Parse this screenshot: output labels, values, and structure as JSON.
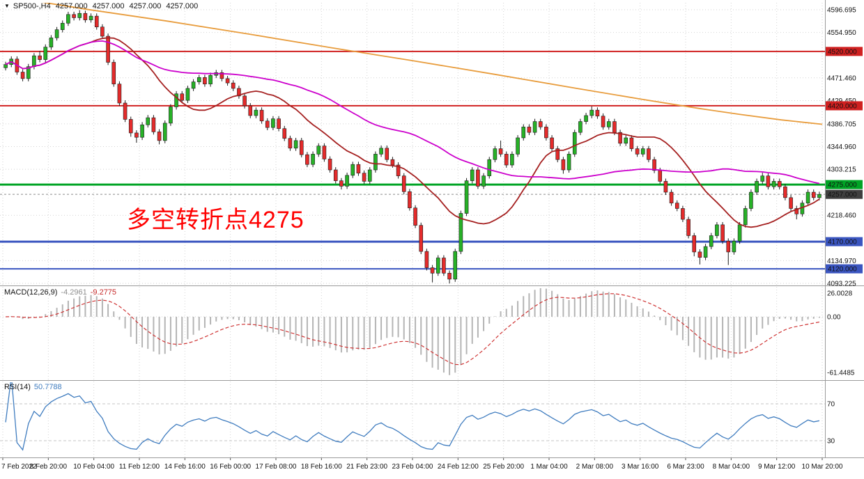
{
  "icons": {
    "dropdown": "▼"
  },
  "header": {
    "symbol": "SP500-,H4",
    "open": "4257.000",
    "high": "4257.000",
    "low": "4257.000",
    "close": "4257.000"
  },
  "annotation": {
    "text": "多空转折点4275",
    "color": "#ff0000"
  },
  "chart_data": {
    "type": "candlestick",
    "symbol": "SP500-",
    "timeframe": "H4",
    "style": {
      "grid": "#d2d2d2",
      "sep": "#9a9a9a",
      "wick": "#1c1c1c",
      "up": "#27b127",
      "down": "#e42b2b",
      "text": "#111111"
    },
    "price_axis": {
      "max": 4596.695,
      "min": 4093.225,
      "labels": [
        {
          "text": "4596.695",
          "value": 4596.695
        },
        {
          "text": "4554.950",
          "value": 4554.95
        },
        {
          "text": "4471.460",
          "value": 4471.46
        },
        {
          "text": "4429.450",
          "value": 4429.45
        },
        {
          "text": "4386.705",
          "value": 4386.705
        },
        {
          "text": "4344.960",
          "value": 4344.96
        },
        {
          "text": "4303.215",
          "value": 4303.215
        },
        {
          "text": "4218.460",
          "value": 4218.46
        },
        {
          "text": "4134.970",
          "value": 4134.97
        },
        {
          "text": "4093.225",
          "value": 4093.225
        }
      ]
    },
    "hlines": [
      {
        "value": 4520,
        "color": "#d02020",
        "width": 2
      },
      {
        "value": 4420,
        "color": "#d02020",
        "width": 2
      },
      {
        "value": 4275,
        "color": "#00a425",
        "width": 3
      },
      {
        "value": 4170,
        "color": "#3a55c0",
        "width": 3
      },
      {
        "value": 4120,
        "color": "#3a55c0",
        "width": 2
      },
      {
        "value": 4257,
        "color": "#8a8a8a",
        "width": 1,
        "dash": "3 3"
      }
    ],
    "badges": [
      {
        "text": "4520.000",
        "value": 4520,
        "color": "#d02020"
      },
      {
        "text": "4420.000",
        "value": 4420,
        "color": "#d02020"
      },
      {
        "text": "4275.000",
        "value": 4275,
        "color": "#00a425"
      },
      {
        "text": "4257.000",
        "value": 4257,
        "color": "#3f3f3f"
      },
      {
        "text": "4170.000",
        "value": 4170,
        "color": "#3a55c0"
      },
      {
        "text": "4120.000",
        "value": 4120,
        "color": "#3a55c0"
      }
    ],
    "moving_averages": [
      {
        "name": "ma-fast-red",
        "color": "#a52020",
        "sma": 16
      },
      {
        "name": "ma-mid-magenta",
        "color": "#cc00cc",
        "sma": 48
      },
      {
        "name": "ma-slow-orange",
        "color": "#e89c3c",
        "points": [
          [
            0,
            4622
          ],
          [
            0.105,
            4597
          ],
          [
            0.2,
            4576
          ],
          [
            0.3,
            4552
          ],
          [
            0.4,
            4527
          ],
          [
            0.5,
            4503
          ],
          [
            0.6,
            4478
          ],
          [
            0.7,
            4452
          ],
          [
            0.78,
            4432
          ],
          [
            0.85,
            4415
          ],
          [
            0.9,
            4404
          ],
          [
            0.95,
            4394
          ],
          [
            1,
            4386
          ]
        ]
      }
    ],
    "candles": [
      [
        4490,
        4501,
        4485,
        4496
      ],
      [
        4496,
        4511,
        4491,
        4506
      ],
      [
        4506,
        4511,
        4477,
        4482
      ],
      [
        4482,
        4487,
        4465,
        4470
      ],
      [
        4470,
        4497,
        4465,
        4492
      ],
      [
        4492,
        4517,
        4487,
        4512
      ],
      [
        4512,
        4521,
        4500,
        4505
      ],
      [
        4505,
        4533,
        4500,
        4528
      ],
      [
        4528,
        4550,
        4523,
        4545
      ],
      [
        4545,
        4565,
        4540,
        4560
      ],
      [
        4560,
        4577,
        4555,
        4572
      ],
      [
        4572,
        4593,
        4567,
        4588
      ],
      [
        4588,
        4593,
        4577,
        4582
      ],
      [
        4582,
        4596,
        4577,
        4590
      ],
      [
        4590,
        4595,
        4573,
        4578
      ],
      [
        4578,
        4590,
        4573,
        4585
      ],
      [
        4585,
        4590,
        4560,
        4565
      ],
      [
        4565,
        4570,
        4543,
        4548
      ],
      [
        4548,
        4553,
        4495,
        4500
      ],
      [
        4500,
        4505,
        4455,
        4460
      ],
      [
        4460,
        4465,
        4420,
        4425
      ],
      [
        4425,
        4430,
        4390,
        4395
      ],
      [
        4395,
        4400,
        4363,
        4370
      ],
      [
        4370,
        4375,
        4352,
        4362
      ],
      [
        4362,
        4390,
        4357,
        4385
      ],
      [
        4385,
        4403,
        4380,
        4398
      ],
      [
        4398,
        4403,
        4367,
        4372
      ],
      [
        4372,
        4377,
        4349,
        4356
      ],
      [
        4356,
        4393,
        4351,
        4388
      ],
      [
        4388,
        4423,
        4383,
        4418
      ],
      [
        4418,
        4447,
        4413,
        4442
      ],
      [
        4442,
        4447,
        4425,
        4430
      ],
      [
        4430,
        4457,
        4425,
        4452
      ],
      [
        4452,
        4469,
        4447,
        4464
      ],
      [
        4464,
        4477,
        4459,
        4472
      ],
      [
        4472,
        4477,
        4455,
        4460
      ],
      [
        4460,
        4481,
        4455,
        4476
      ],
      [
        4476,
        4486,
        4471,
        4481
      ],
      [
        4481,
        4486,
        4465,
        4470
      ],
      [
        4470,
        4475,
        4457,
        4462
      ],
      [
        4462,
        4467,
        4447,
        4452
      ],
      [
        4452,
        4457,
        4433,
        4438
      ],
      [
        4438,
        4443,
        4415,
        4420
      ],
      [
        4420,
        4425,
        4397,
        4402
      ],
      [
        4402,
        4417,
        4397,
        4412
      ],
      [
        4412,
        4417,
        4387,
        4392
      ],
      [
        4392,
        4397,
        4375,
        4380
      ],
      [
        4380,
        4401,
        4375,
        4396
      ],
      [
        4396,
        4401,
        4373,
        4378
      ],
      [
        4378,
        4383,
        4355,
        4360
      ],
      [
        4360,
        4365,
        4337,
        4342
      ],
      [
        4342,
        4361,
        4337,
        4356
      ],
      [
        4356,
        4361,
        4325,
        4330
      ],
      [
        4330,
        4335,
        4307,
        4312
      ],
      [
        4312,
        4336,
        4307,
        4331
      ],
      [
        4331,
        4351,
        4326,
        4346
      ],
      [
        4346,
        4351,
        4317,
        4322
      ],
      [
        4322,
        4327,
        4297,
        4302
      ],
      [
        4302,
        4307,
        4277,
        4282
      ],
      [
        4282,
        4287,
        4266,
        4272
      ],
      [
        4272,
        4297,
        4267,
        4292
      ],
      [
        4292,
        4317,
        4287,
        4312
      ],
      [
        4312,
        4317,
        4291,
        4296
      ],
      [
        4296,
        4301,
        4276,
        4281
      ],
      [
        4281,
        4307,
        4276,
        4302
      ],
      [
        4302,
        4336,
        4297,
        4331
      ],
      [
        4331,
        4347,
        4326,
        4342
      ],
      [
        4342,
        4347,
        4316,
        4321
      ],
      [
        4321,
        4326,
        4306,
        4311
      ],
      [
        4311,
        4316,
        4286,
        4291
      ],
      [
        4291,
        4296,
        4257,
        4262
      ],
      [
        4262,
        4267,
        4227,
        4232
      ],
      [
        4232,
        4237,
        4195,
        4200
      ],
      [
        4200,
        4205,
        4147,
        4152
      ],
      [
        4152,
        4157,
        4117,
        4122
      ],
      [
        4122,
        4127,
        4095,
        4112
      ],
      [
        4112,
        4145,
        4107,
        4140
      ],
      [
        4140,
        4145,
        4107,
        4112
      ],
      [
        4112,
        4117,
        4093,
        4101
      ],
      [
        4101,
        4157,
        4096,
        4152
      ],
      [
        4152,
        4227,
        4147,
        4222
      ],
      [
        4222,
        4287,
        4217,
        4282
      ],
      [
        4282,
        4307,
        4277,
        4302
      ],
      [
        4302,
        4307,
        4267,
        4272
      ],
      [
        4272,
        4296,
        4267,
        4291
      ],
      [
        4291,
        4326,
        4286,
        4321
      ],
      [
        4321,
        4346,
        4316,
        4341
      ],
      [
        4341,
        4356,
        4326,
        4331
      ],
      [
        4331,
        4336,
        4306,
        4311
      ],
      [
        4311,
        4336,
        4306,
        4331
      ],
      [
        4331,
        4366,
        4326,
        4361
      ],
      [
        4361,
        4386,
        4356,
        4381
      ],
      [
        4381,
        4386,
        4366,
        4371
      ],
      [
        4371,
        4396,
        4366,
        4391
      ],
      [
        4391,
        4396,
        4376,
        4381
      ],
      [
        4381,
        4386,
        4356,
        4361
      ],
      [
        4361,
        4366,
        4336,
        4341
      ],
      [
        4341,
        4346,
        4316,
        4321
      ],
      [
        4321,
        4326,
        4295,
        4302
      ],
      [
        4302,
        4336,
        4297,
        4331
      ],
      [
        4331,
        4376,
        4326,
        4371
      ],
      [
        4371,
        4396,
        4366,
        4391
      ],
      [
        4391,
        4407,
        4386,
        4402
      ],
      [
        4402,
        4419,
        4397,
        4412
      ],
      [
        4412,
        4417,
        4396,
        4401
      ],
      [
        4401,
        4406,
        4376,
        4381
      ],
      [
        4381,
        4396,
        4376,
        4391
      ],
      [
        4391,
        4396,
        4366,
        4371
      ],
      [
        4371,
        4376,
        4346,
        4351
      ],
      [
        4351,
        4366,
        4346,
        4361
      ],
      [
        4361,
        4366,
        4336,
        4341
      ],
      [
        4341,
        4346,
        4326,
        4331
      ],
      [
        4331,
        4346,
        4326,
        4341
      ],
      [
        4341,
        4346,
        4316,
        4321
      ],
      [
        4321,
        4326,
        4296,
        4301
      ],
      [
        4301,
        4306,
        4276,
        4281
      ],
      [
        4281,
        4286,
        4256,
        4261
      ],
      [
        4261,
        4266,
        4236,
        4241
      ],
      [
        4241,
        4246,
        4226,
        4231
      ],
      [
        4231,
        4236,
        4206,
        4211
      ],
      [
        4211,
        4216,
        4176,
        4181
      ],
      [
        4181,
        4186,
        4143,
        4151
      ],
      [
        4151,
        4156,
        4128,
        4141
      ],
      [
        4141,
        4166,
        4136,
        4161
      ],
      [
        4161,
        4186,
        4156,
        4181
      ],
      [
        4181,
        4206,
        4176,
        4201
      ],
      [
        4201,
        4206,
        4166,
        4171
      ],
      [
        4171,
        4176,
        4127,
        4151
      ],
      [
        4151,
        4176,
        4146,
        4171
      ],
      [
        4171,
        4206,
        4166,
        4201
      ],
      [
        4201,
        4236,
        4196,
        4231
      ],
      [
        4231,
        4266,
        4226,
        4261
      ],
      [
        4261,
        4286,
        4256,
        4281
      ],
      [
        4281,
        4297,
        4276,
        4291
      ],
      [
        4291,
        4296,
        4266,
        4271
      ],
      [
        4271,
        4286,
        4266,
        4281
      ],
      [
        4281,
        4286,
        4266,
        4271
      ],
      [
        4271,
        4276,
        4246,
        4251
      ],
      [
        4251,
        4256,
        4226,
        4231
      ],
      [
        4231,
        4236,
        4211,
        4221
      ],
      [
        4221,
        4246,
        4216,
        4241
      ],
      [
        4241,
        4266,
        4236,
        4261
      ],
      [
        4261,
        4266,
        4246,
        4251
      ],
      [
        4251,
        4262,
        4246,
        4257
      ]
    ],
    "time_labels": [
      "7 Feb 2022",
      "8 Feb 20:00",
      "10 Feb 04:00",
      "11 Feb 12:00",
      "14 Feb 16:00",
      "16 Feb 00:00",
      "17 Feb 08:00",
      "18 Feb 16:00",
      "21 Feb 23:00",
      "23 Feb 04:00",
      "24 Feb 12:00",
      "25 Feb 20:00",
      "1 Mar 04:00",
      "2 Mar 08:00",
      "3 Mar 16:00",
      "6 Mar 23:00",
      "8 Mar 04:00",
      "9 Mar 12:00",
      "10 Mar 20:00"
    ],
    "ticks_every": 8,
    "macd": {
      "title": "MACD(12,26,9)",
      "value_main": "-4.2961",
      "value_signal": "-9.2775",
      "fast": 12,
      "slow": 26,
      "signal": 9,
      "hist_color": "#b4b4b4",
      "signal_color": "#cf3535",
      "axis": [
        {
          "text": "26.0028",
          "value": 26.0028
        },
        {
          "text": "0.00",
          "value": 0
        },
        {
          "text": "-61.4485",
          "value": -61.4485
        }
      ]
    },
    "rsi": {
      "title": "RSI(14)",
      "value": "50.7788",
      "period": 14,
      "color": "#3f7cbf",
      "levels": [
        {
          "text": "70",
          "value": 70
        },
        {
          "text": "30",
          "value": 30
        }
      ]
    }
  }
}
